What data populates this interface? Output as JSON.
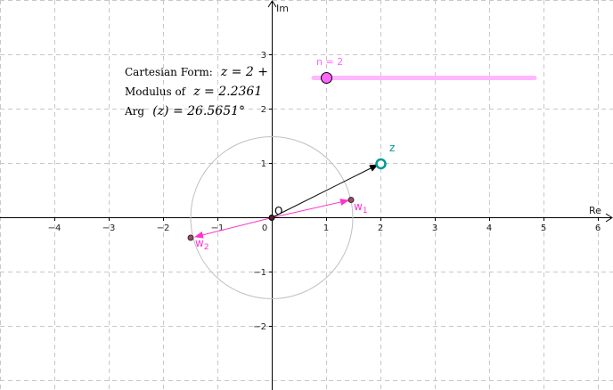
{
  "axes": {
    "x_name": "Re",
    "y_name": "Im",
    "x_ticks": [
      "−4",
      "−3",
      "−2",
      "−1",
      "0",
      "1",
      "2",
      "3",
      "4",
      "5",
      "6"
    ],
    "y_ticks": [
      "3",
      "2",
      "1",
      "−1",
      "−2"
    ]
  },
  "info": {
    "cartesian_label": "Cartesian Form:",
    "cartesian_value": "z = 2 +",
    "modulus_label": "Modulus of",
    "modulus_value": "z = 2.2361",
    "arg_label": "Arg",
    "arg_value": "(z) = 26.5651°"
  },
  "slider": {
    "label": "n = 2",
    "value": 2,
    "color": "#ff66ff"
  },
  "points": {
    "origin_label": "O",
    "z_label": "z",
    "w1_label": "w",
    "w1_sub": "1",
    "w2_label": "w",
    "w2_sub": "2"
  },
  "colors": {
    "z": "#009999",
    "roots": "#ff33cc",
    "circle": "#c0c0c0",
    "vector_z": "#000000"
  }
}
